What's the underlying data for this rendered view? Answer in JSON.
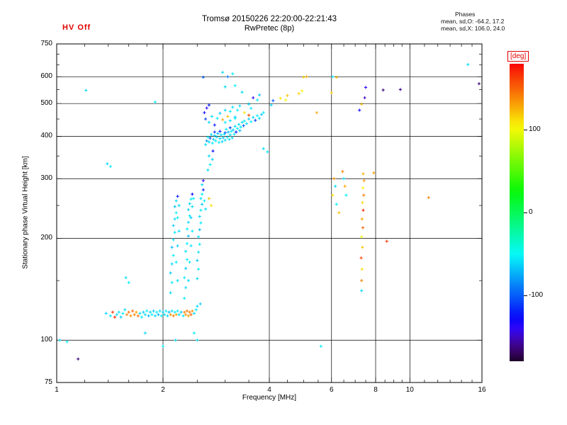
{
  "header": {
    "hv_status": "HV Off",
    "title": "Tromsø 20150226 22:20:00-22:21:43",
    "subtitle": "RwPretec (8p)",
    "phases_label": "Phases",
    "phases_o": "mean, sd,O: -64.2, 17.2",
    "phases_x": "mean, sd,X: 106.0, 24.0"
  },
  "colors": {
    "accent_red": "#e00000",
    "frame": "#000000",
    "background": "#ffffff"
  },
  "chart_data": {
    "type": "scatter",
    "title": "Tromsø 20150226 22:20:00-22:21:43",
    "subtitle": "RwPretec (8p)",
    "xlabel": "Frequency [MHz]",
    "ylabel": "Stationary phase Virtual Height [km]",
    "xscale": "log",
    "yscale": "log",
    "xlim": [
      1,
      16
    ],
    "ylim": [
      75,
      750
    ],
    "xticks": [
      1,
      2,
      4,
      6,
      8,
      10,
      16
    ],
    "yticks": [
      75,
      100,
      200,
      300,
      400,
      500,
      600,
      750
    ],
    "x_gridlines": [
      2,
      4,
      6,
      8,
      10
    ],
    "y_gridlines": [
      100,
      200,
      300,
      400,
      500,
      600
    ],
    "x_minor_ticks": [
      1.2,
      1.4,
      1.6,
      1.8,
      2.5,
      3,
      3.5,
      4.5,
      5,
      5.5,
      6.5,
      7,
      7.5,
      8.5,
      9,
      9.5,
      11,
      12,
      13,
      14,
      15
    ],
    "y_minor_ticks": [
      150,
      250,
      350,
      450,
      550,
      650,
      700
    ],
    "grid": true,
    "legend": "none",
    "marker": "+",
    "colorbar": {
      "label": "[deg]",
      "min": -180,
      "max": 180,
      "ticks": [
        100,
        0,
        -100
      ],
      "label_color": "#e00000",
      "colormap": "rainbow (red=+180 ... cyan=-60 ... black=-180)"
    },
    "points_format": [
      "freq_mhz",
      "virtual_height_km",
      "phase_deg"
    ],
    "points": [
      [
        1.38,
        120,
        -60
      ],
      [
        1.42,
        118,
        -55
      ],
      [
        1.44,
        121,
        165
      ],
      [
        1.46,
        117,
        170
      ],
      [
        1.48,
        119,
        -60
      ],
      [
        1.5,
        121,
        -60
      ],
      [
        1.52,
        117,
        -65
      ],
      [
        1.54,
        120,
        -55
      ],
      [
        1.56,
        123,
        -60
      ],
      [
        1.58,
        119,
        140
      ],
      [
        1.6,
        121,
        145
      ],
      [
        1.62,
        118,
        135
      ],
      [
        1.64,
        122,
        150
      ],
      [
        1.66,
        119,
        140
      ],
      [
        1.68,
        121,
        130
      ],
      [
        1.7,
        118,
        145
      ],
      [
        1.72,
        120,
        -60
      ],
      [
        1.74,
        117,
        -55
      ],
      [
        1.76,
        121,
        -65
      ],
      [
        1.78,
        119,
        -60
      ],
      [
        1.8,
        122,
        -55
      ],
      [
        1.82,
        118,
        -70
      ],
      [
        1.84,
        121,
        -60
      ],
      [
        1.86,
        119,
        -55
      ],
      [
        1.88,
        122,
        -65
      ],
      [
        1.9,
        118,
        -60
      ],
      [
        1.92,
        121,
        -55
      ],
      [
        1.94,
        119,
        -70
      ],
      [
        1.96,
        122,
        -60
      ],
      [
        1.98,
        118,
        -55
      ],
      [
        2.0,
        121,
        -65
      ],
      [
        2.02,
        119,
        -60
      ],
      [
        2.04,
        122,
        -55
      ],
      [
        2.06,
        118,
        -60
      ],
      [
        2.08,
        121,
        -70
      ],
      [
        2.1,
        119,
        135
      ],
      [
        2.12,
        122,
        -60
      ],
      [
        2.14,
        118,
        140
      ],
      [
        2.16,
        121,
        -55
      ],
      [
        2.18,
        119,
        130
      ],
      [
        2.2,
        122,
        -55
      ],
      [
        2.22,
        119,
        -60
      ],
      [
        2.25,
        121,
        -65
      ],
      [
        2.28,
        118,
        -55
      ],
      [
        2.3,
        121,
        140
      ],
      [
        2.32,
        119,
        135
      ],
      [
        2.34,
        122,
        145
      ],
      [
        2.36,
        118,
        130
      ],
      [
        2.38,
        121,
        140
      ],
      [
        2.4,
        119,
        150
      ],
      [
        2.42,
        122,
        135
      ],
      [
        2.45,
        120,
        -60
      ],
      [
        2.48,
        123,
        -55
      ],
      [
        2.5,
        126,
        -60
      ],
      [
        2.55,
        128,
        -65
      ],
      [
        1.78,
        105,
        -60
      ],
      [
        2.0,
        96,
        -55
      ],
      [
        2.17,
        100,
        -60
      ],
      [
        2.45,
        105,
        -55
      ],
      [
        2.5,
        100,
        -60
      ],
      [
        2.1,
        138,
        -60
      ],
      [
        2.12,
        148,
        -55
      ],
      [
        2.1,
        158,
        -65
      ],
      [
        2.12,
        168,
        -60
      ],
      [
        2.14,
        178,
        -55
      ],
      [
        2.12,
        188,
        -70
      ],
      [
        2.14,
        198,
        -60
      ],
      [
        2.16,
        208,
        -55
      ],
      [
        2.14,
        218,
        -65
      ],
      [
        2.16,
        228,
        -60
      ],
      [
        2.18,
        238,
        -55
      ],
      [
        2.16,
        248,
        -70
      ],
      [
        2.18,
        258,
        -60
      ],
      [
        2.2,
        266,
        -120
      ],
      [
        2.2,
        150,
        -60
      ],
      [
        2.18,
        170,
        -55
      ],
      [
        2.2,
        190,
        -65
      ],
      [
        2.22,
        210,
        -60
      ],
      [
        2.2,
        230,
        -55
      ],
      [
        2.22,
        250,
        -60
      ],
      [
        2.3,
        133,
        -55
      ],
      [
        2.32,
        143,
        -60
      ],
      [
        2.3,
        153,
        -55
      ],
      [
        2.32,
        163,
        -65
      ],
      [
        2.34,
        173,
        -55
      ],
      [
        2.32,
        183,
        -60
      ],
      [
        2.34,
        193,
        -55
      ],
      [
        2.36,
        203,
        -70
      ],
      [
        2.34,
        213,
        -55
      ],
      [
        2.36,
        223,
        -60
      ],
      [
        2.38,
        233,
        -55
      ],
      [
        2.36,
        243,
        -65
      ],
      [
        2.38,
        253,
        -60
      ],
      [
        2.4,
        261,
        -55
      ],
      [
        2.42,
        270,
        -130
      ],
      [
        2.36,
        150,
        -60
      ],
      [
        2.38,
        170,
        -55
      ],
      [
        2.4,
        190,
        -60
      ],
      [
        2.42,
        210,
        -55
      ],
      [
        2.4,
        230,
        -65
      ],
      [
        2.42,
        248,
        -60
      ],
      [
        2.44,
        262,
        -55
      ],
      [
        2.5,
        152,
        -60
      ],
      [
        2.52,
        162,
        -55
      ],
      [
        2.5,
        172,
        -65
      ],
      [
        2.52,
        182,
        -60
      ],
      [
        2.54,
        192,
        -55
      ],
      [
        2.52,
        202,
        -60
      ],
      [
        2.54,
        212,
        -70
      ],
      [
        2.56,
        222,
        -55
      ],
      [
        2.54,
        232,
        -60
      ],
      [
        2.56,
        242,
        -55
      ],
      [
        2.58,
        252,
        -65
      ],
      [
        2.56,
        262,
        -60
      ],
      [
        2.58,
        270,
        -55
      ],
      [
        2.6,
        278,
        -120
      ],
      [
        2.58,
        288,
        -60
      ],
      [
        2.6,
        296,
        -140
      ],
      [
        2.62,
        258,
        -55
      ],
      [
        2.64,
        244,
        -60
      ],
      [
        2.7,
        262,
        120
      ],
      [
        2.74,
        250,
        110
      ],
      [
        2.68,
        318,
        -60
      ],
      [
        2.72,
        330,
        -55
      ],
      [
        2.76,
        342,
        -65
      ],
      [
        2.7,
        350,
        -60
      ],
      [
        2.77,
        362,
        -130
      ],
      [
        2.64,
        378,
        -60
      ],
      [
        2.66,
        388,
        -80
      ],
      [
        2.68,
        398,
        -55
      ],
      [
        2.7,
        385,
        -60
      ],
      [
        2.72,
        395,
        -100
      ],
      [
        2.74,
        405,
        -60
      ],
      [
        2.76,
        382,
        -55
      ],
      [
        2.78,
        392,
        -65
      ],
      [
        2.8,
        402,
        -60
      ],
      [
        2.8,
        412,
        -110
      ],
      [
        2.82,
        388,
        -55
      ],
      [
        2.84,
        398,
        -60
      ],
      [
        2.86,
        408,
        -70
      ],
      [
        2.88,
        384,
        -55
      ],
      [
        2.9,
        394,
        -60
      ],
      [
        2.9,
        414,
        -120
      ],
      [
        2.92,
        404,
        -55
      ],
      [
        2.94,
        386,
        -60
      ],
      [
        2.96,
        396,
        -65
      ],
      [
        2.98,
        406,
        -55
      ],
      [
        3.0,
        390,
        -60
      ],
      [
        3.0,
        410,
        -100
      ],
      [
        3.02,
        420,
        -55
      ],
      [
        3.04,
        398,
        -60
      ],
      [
        3.06,
        412,
        -70
      ],
      [
        3.08,
        392,
        -55
      ],
      [
        3.1,
        404,
        -60
      ],
      [
        3.1,
        424,
        -110
      ],
      [
        3.12,
        414,
        -55
      ],
      [
        3.14,
        396,
        -60
      ],
      [
        3.16,
        418,
        -65
      ],
      [
        3.18,
        406,
        -55
      ],
      [
        3.2,
        428,
        -60
      ],
      [
        3.22,
        412,
        -120
      ],
      [
        3.25,
        422,
        -55
      ],
      [
        3.28,
        434,
        -60
      ],
      [
        3.3,
        416,
        -70
      ],
      [
        3.32,
        426,
        -55
      ],
      [
        3.35,
        440,
        -60
      ],
      [
        3.38,
        430,
        -100
      ],
      [
        3.4,
        444,
        -55
      ],
      [
        3.45,
        436,
        -60
      ],
      [
        3.5,
        450,
        -65
      ],
      [
        3.55,
        442,
        -55
      ],
      [
        3.6,
        455,
        -60
      ],
      [
        3.65,
        446,
        -110
      ],
      [
        3.7,
        460,
        -55
      ],
      [
        3.75,
        452,
        -60
      ],
      [
        3.8,
        464,
        -65
      ],
      [
        3.85,
        470,
        -55
      ],
      [
        2.75,
        458,
        -60
      ],
      [
        2.85,
        452,
        -55
      ],
      [
        2.9,
        468,
        -65
      ],
      [
        2.95,
        448,
        130
      ],
      [
        3.0,
        478,
        -60
      ],
      [
        3.05,
        458,
        120
      ],
      [
        3.1,
        474,
        -55
      ],
      [
        3.15,
        488,
        -60
      ],
      [
        3.2,
        456,
        -65
      ],
      [
        3.25,
        478,
        -55
      ],
      [
        3.3,
        492,
        -60
      ],
      [
        3.4,
        470,
        110
      ],
      [
        3.5,
        498,
        -60
      ],
      [
        3.55,
        484,
        -55
      ],
      [
        2.7,
        440,
        -60
      ],
      [
        2.8,
        432,
        -120
      ],
      [
        3.0,
        440,
        -55
      ],
      [
        3.1,
        445,
        -60
      ],
      [
        3.2,
        452,
        -55
      ],
      [
        3.5,
        462,
        160
      ],
      [
        2.62,
        470,
        -130
      ],
      [
        2.66,
        485,
        -140
      ],
      [
        2.7,
        495,
        -120
      ],
      [
        2.64,
        450,
        -110
      ],
      [
        3.85,
        368,
        -60
      ],
      [
        3.95,
        360,
        -55
      ],
      [
        2.6,
        598,
        -100
      ],
      [
        2.95,
        618,
        -60
      ],
      [
        3.05,
        600,
        -90
      ],
      [
        3.15,
        612,
        -55
      ],
      [
        3.0,
        560,
        -60
      ],
      [
        3.2,
        565,
        -55
      ],
      [
        3.35,
        540,
        -60
      ],
      [
        3.7,
        512,
        -55
      ],
      [
        3.75,
        530,
        -65
      ],
      [
        3.6,
        520,
        -140
      ],
      [
        4.05,
        495,
        -60
      ],
      [
        4.1,
        510,
        -100
      ],
      [
        4.3,
        518,
        110
      ],
      [
        4.45,
        512,
        100
      ],
      [
        4.5,
        528,
        120
      ],
      [
        4.85,
        535,
        115
      ],
      [
        4.95,
        545,
        105
      ],
      [
        5.0,
        598,
        110
      ],
      [
        5.1,
        600,
        130
      ],
      [
        5.45,
        470,
        130
      ],
      [
        6.0,
        538,
        120
      ],
      [
        6.05,
        600,
        -55
      ],
      [
        6.2,
        598,
        125
      ],
      [
        6.1,
        300,
        135
      ],
      [
        6.15,
        285,
        -60
      ],
      [
        6.05,
        268,
        110
      ],
      [
        6.2,
        252,
        -55
      ],
      [
        6.3,
        238,
        120
      ],
      [
        6.5,
        300,
        -60
      ],
      [
        6.55,
        285,
        130
      ],
      [
        6.6,
        268,
        -55
      ],
      [
        6.45,
        315,
        140
      ],
      [
        7.3,
        150,
        140
      ],
      [
        7.32,
        162,
        110
      ],
      [
        7.28,
        175,
        160
      ],
      [
        7.34,
        188,
        120
      ],
      [
        7.3,
        202,
        100
      ],
      [
        7.36,
        215,
        150
      ],
      [
        7.32,
        228,
        130
      ],
      [
        7.38,
        242,
        170
      ],
      [
        7.34,
        255,
        115
      ],
      [
        7.4,
        268,
        140
      ],
      [
        7.36,
        282,
        105
      ],
      [
        7.42,
        296,
        135
      ],
      [
        7.38,
        310,
        125
      ],
      [
        7.3,
        140,
        -60
      ],
      [
        7.2,
        478,
        -130
      ],
      [
        7.3,
        498,
        120
      ],
      [
        7.45,
        520,
        -150
      ],
      [
        7.5,
        558,
        -140
      ],
      [
        7.9,
        312,
        130
      ],
      [
        8.4,
        548,
        -165
      ],
      [
        8.6,
        196,
        165
      ],
      [
        11.3,
        264,
        140
      ],
      [
        14.6,
        652,
        -60
      ],
      [
        15.7,
        572,
        -165
      ],
      [
        9.4,
        550,
        -160
      ],
      [
        1.02,
        100,
        -60
      ],
      [
        1.07,
        99,
        -55
      ],
      [
        1.15,
        88,
        -165
      ],
      [
        1.21,
        547,
        -60
      ],
      [
        1.39,
        332,
        -60
      ],
      [
        1.42,
        326,
        -55
      ],
      [
        1.57,
        153,
        -60
      ],
      [
        1.6,
        148,
        -55
      ],
      [
        1.9,
        505,
        -55
      ],
      [
        5.6,
        96,
        -55
      ]
    ]
  }
}
